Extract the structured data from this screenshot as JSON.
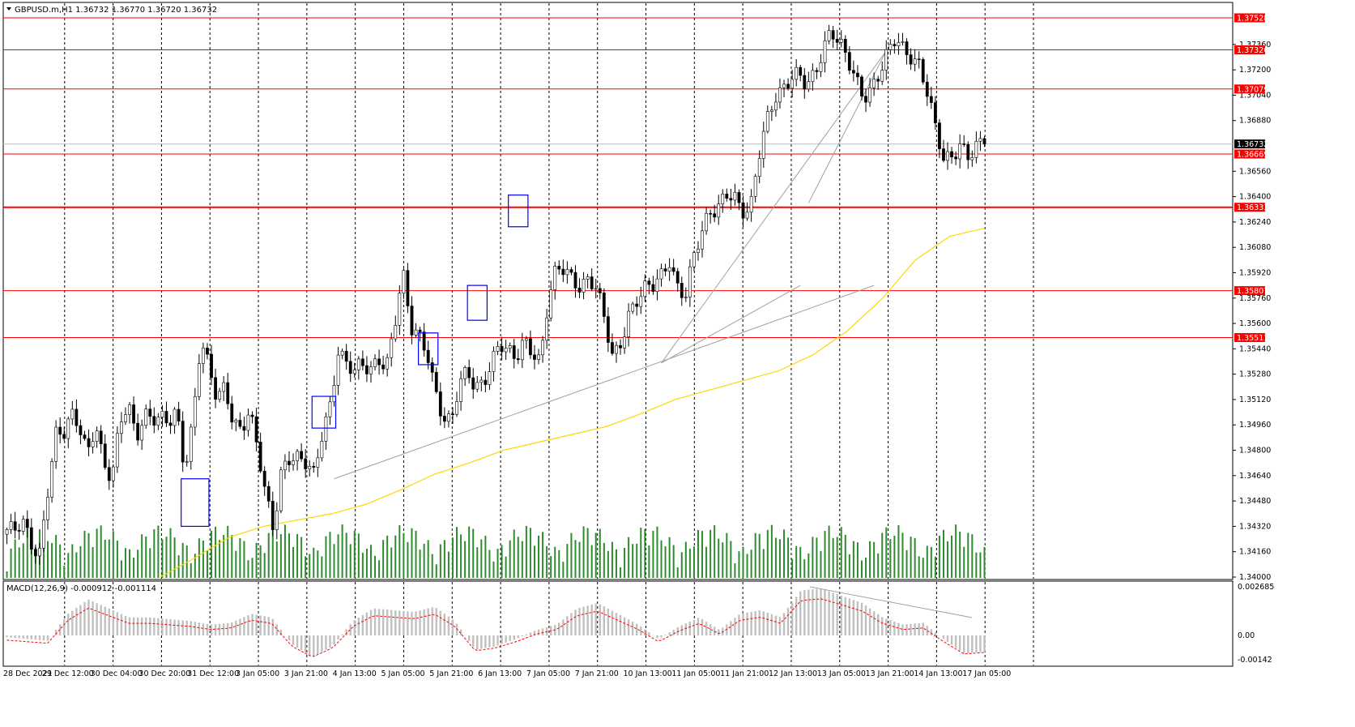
{
  "window": {
    "menu_icon": "triangle-down-icon",
    "symbol_header": "GBPUSD.m,H1  1.36732 1.36770 1.36720 1.36732"
  },
  "colors": {
    "background": "#ffffff",
    "bull_candle": "#ffffff",
    "bear_candle": "#000000",
    "horizontal_level": "#ff0000",
    "moving_average": "#ffd700",
    "volume": "#2e8b2e",
    "zone_box": "#0000ff",
    "trendline": "#a0a0a0",
    "macd_hist": "#c0c0c0",
    "macd_signal": "#ff0000",
    "current_price_tag": "#000000"
  },
  "price_axis": {
    "ticks": [
      "1.37360",
      "1.37200",
      "1.37040",
      "1.36880",
      "1.36560",
      "1.36400",
      "1.36240",
      "1.36080",
      "1.35920",
      "1.35760",
      "1.35600",
      "1.35440",
      "1.35280",
      "1.35120",
      "1.34960",
      "1.34800",
      "1.34640",
      "1.34480",
      "1.34320",
      "1.34160",
      "1.34000"
    ]
  },
  "levels": [
    {
      "label": "1.37528",
      "value": 1.37528
    },
    {
      "label": "1.37326",
      "value": 1.37326
    },
    {
      "label": "1.37079",
      "value": 1.37079
    },
    {
      "label": "1.36669",
      "value": 1.36669
    },
    {
      "label": "1.36333",
      "value": 1.36333
    },
    {
      "label": "1.35807",
      "value": 1.35807
    },
    {
      "label": "1.35511",
      "value": 1.35511
    }
  ],
  "current_price": {
    "label": "1.36732",
    "value": 1.36732
  },
  "macd": {
    "title": "MACD(12,26,9) -0.000912 -0.001114",
    "ticks": [
      "0.002685",
      "0.00",
      "-0.00142"
    ]
  },
  "time_axis": {
    "labels": [
      "28 Dec 2021",
      "29 Dec 12:00",
      "30 Dec 04:00",
      "30 Dec 20:00",
      "31 Dec 12:00",
      "3 Jan 05:00",
      "3 Jan 21:00",
      "4 Jan 13:00",
      "5 Jan 05:00",
      "5 Jan 21:00",
      "6 Jan 13:00",
      "7 Jan 05:00",
      "7 Jan 21:00",
      "10 Jan 13:00",
      "11 Jan 05:00",
      "11 Jan 21:00",
      "12 Jan 13:00",
      "13 Jan 05:00",
      "13 Jan 21:00",
      "14 Jan 13:00",
      "17 Jan 05:00"
    ]
  },
  "chart_data": {
    "type": "candlestick",
    "symbol": "GBPUSD.m",
    "timeframe": "H1",
    "last_bar": {
      "open": 1.36732,
      "high": 1.3677,
      "low": 1.3672,
      "close": 1.36732
    },
    "ylim": [
      1.34,
      1.3762
    ],
    "close_path": [
      1.343,
      1.3428,
      1.3432,
      1.3421,
      1.3415,
      1.3455,
      1.349,
      1.3488,
      1.35,
      1.3495,
      1.348,
      1.35,
      1.347,
      1.346,
      1.3495,
      1.351,
      1.349,
      1.3505,
      1.35,
      1.3498,
      1.3495,
      1.3505,
      1.347,
      1.35,
      1.355,
      1.353,
      1.351,
      1.352,
      1.35,
      1.3495,
      1.3505,
      1.348,
      1.345,
      1.343,
      1.347,
      1.3478,
      1.3475,
      1.347,
      1.3462,
      1.349,
      1.351,
      1.3545,
      1.3535,
      1.3528,
      1.3532,
      1.353,
      1.354,
      1.3535,
      1.356,
      1.359,
      1.3555,
      1.3552,
      1.3545,
      1.352,
      1.35,
      1.3495,
      1.352,
      1.353,
      1.3522,
      1.3525,
      1.3535,
      1.3545,
      1.354,
      1.3538,
      1.3552,
      1.3545,
      1.3535,
      1.3572,
      1.3592,
      1.3595,
      1.359,
      1.3585,
      1.3588,
      1.358,
      1.356,
      1.3538,
      1.355,
      1.3568,
      1.3575,
      1.358,
      1.3582,
      1.359,
      1.3602,
      1.3585,
      1.3578,
      1.36,
      1.3615,
      1.363,
      1.3635,
      1.3645,
      1.364,
      1.3628,
      1.3628,
      1.3665,
      1.369,
      1.3705,
      1.3707,
      1.3712,
      1.3715,
      1.371,
      1.372,
      1.3735,
      1.3745,
      1.3735,
      1.3725,
      1.3715,
      1.3705,
      1.371,
      1.3718,
      1.3728,
      1.3738,
      1.3732,
      1.373,
      1.3725,
      1.3705,
      1.368,
      1.366,
      1.3665,
      1.3675,
      1.3668,
      1.3672,
      1.3673
    ],
    "moving_average": {
      "color": "#ffd700",
      "values": [
        1.34,
        1.3412,
        1.3425,
        1.3432,
        1.3436,
        1.344,
        1.3446,
        1.3455,
        1.3465,
        1.3472,
        1.348,
        1.3485,
        1.349,
        1.3495,
        1.3503,
        1.3512,
        1.3518,
        1.3524,
        1.353,
        1.354,
        1.3555,
        1.3575,
        1.36,
        1.3615,
        1.362
      ]
    },
    "zones": [
      {
        "time_index_from": 43,
        "time_index_to": 49,
        "price_top": 1.3462,
        "price_bottom": 1.3432
      },
      {
        "time_index_from": 75,
        "time_index_to": 80,
        "price_top": 1.3514,
        "price_bottom": 1.3494
      },
      {
        "time_index_from": 101,
        "time_index_to": 105,
        "price_top": 1.3554,
        "price_bottom": 1.3534
      },
      {
        "time_index_from": 113,
        "time_index_to": 117,
        "price_top": 1.3584,
        "price_bottom": 1.3562
      },
      {
        "time_index_from": 123,
        "time_index_to": 127,
        "price_top": 1.3641,
        "price_bottom": 1.3621
      }
    ],
    "macd_hist": [
      -0.0001,
      -0.0002,
      -0.0003,
      0.0012,
      0.002,
      0.0015,
      0.001,
      0.001,
      0.0009,
      0.0008,
      0.0006,
      0.0007,
      0.0012,
      0.001,
      -0.0005,
      -0.0012,
      -0.0006,
      0.0008,
      0.0015,
      0.0014,
      0.0013,
      0.0016,
      0.0008,
      -0.0008,
      -0.0006,
      -0.0002,
      0.0003,
      0.0006,
      0.0015,
      0.0018,
      0.0012,
      0.0006,
      -0.0002,
      0.0005,
      0.001,
      0.0003,
      0.0012,
      0.0014,
      0.001,
      0.0025,
      0.0026,
      0.0022,
      0.0018,
      0.001,
      0.0006,
      0.0007,
      -0.0002,
      -0.001,
      -0.0009
    ]
  }
}
